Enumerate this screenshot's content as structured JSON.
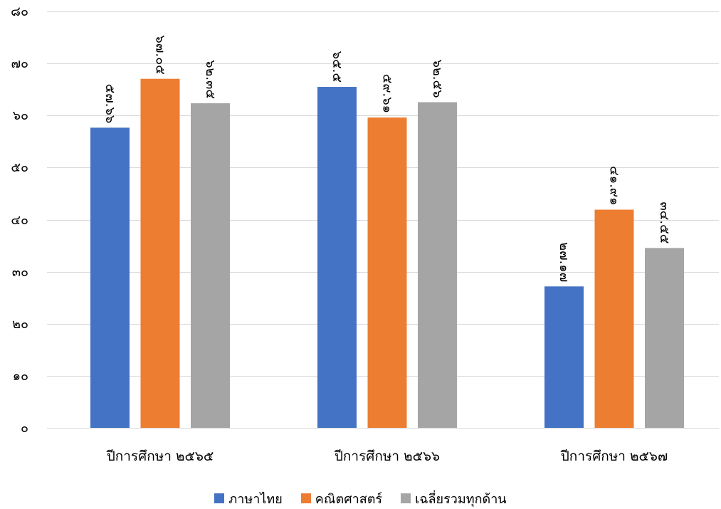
{
  "chart_data": {
    "type": "bar",
    "categories": [
      "ปีการศึกษา ๒๕๖๕",
      "ปีการศึกษา ๒๕๖๖",
      "ปีการศึกษา ๒๕๖๗"
    ],
    "series": [
      {
        "name": "ภาษาไทย",
        "color": "#4472C4",
        "values": [
          57.66,
          65.5,
          27.17
        ],
        "labels": [
          "๕๗.๖๖",
          "๖๕.๕",
          "๒๗.๑๗"
        ]
      },
      {
        "name": "คณิตศาสตร์",
        "color": "#ED7D31",
        "values": [
          67.05,
          59.61,
          41.91
        ],
        "labels": [
          "๖๗.๐๕",
          "๕๙.๖๑",
          "๔๑.๙๑"
        ]
      },
      {
        "name": "เฉลี่ยรวมทุกด้าน",
        "color": "#A5A5A5",
        "values": [
          62.35,
          62.56,
          34.55
        ],
        "labels": [
          "๖๒.๓๕",
          "๖๒.๕๖",
          "๓๔.๕๕"
        ]
      }
    ],
    "ylim": [
      0,
      80
    ],
    "yticks": [
      0,
      10,
      20,
      30,
      40,
      50,
      60,
      70,
      80
    ],
    "ytick_labels": [
      "๐",
      "๑๐",
      "๒๐",
      "๓๐",
      "๔๐",
      "๕๐",
      "๖๐",
      "๗๐",
      "๘๐"
    ],
    "grid": true,
    "gridline_color": "#D9D9D9",
    "legend": "bottom"
  }
}
